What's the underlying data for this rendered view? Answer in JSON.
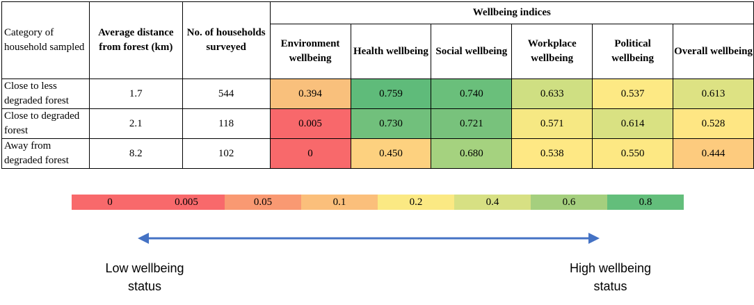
{
  "table": {
    "header": {
      "category": "Category of household sampled",
      "distance": "Average distance from forest (km)",
      "households": "No. of households surveyed",
      "indices_group": "Wellbeing indices",
      "indices": [
        "Environment wellbeing",
        "Health wellbeing",
        "Social wellbeing",
        "Workplace wellbeing",
        "Political wellbeing",
        "Overall wellbeing"
      ]
    },
    "rows": [
      {
        "category": "Close to less degraded forest",
        "distance": "1.7",
        "households": "544",
        "values": [
          "0.394",
          "0.759",
          "0.740",
          "0.633",
          "0.537",
          "0.613"
        ],
        "colors": [
          "#f9c07c",
          "#5fbb7a",
          "#6abf7b",
          "#cfdf82",
          "#fde984",
          "#dde283"
        ]
      },
      {
        "category": "Close to degraded forest",
        "distance": "2.1",
        "households": "118",
        "values": [
          "0.005",
          "0.730",
          "0.721",
          "0.571",
          "0.614",
          "0.528"
        ],
        "colors": [
          "#f8686b",
          "#71c07c",
          "#78c27c",
          "#f6e883",
          "#d9e182",
          "#fee683"
        ]
      },
      {
        "category": "Away from degraded forest",
        "distance": "8.2",
        "households": "102",
        "values": [
          "0",
          "0.450",
          "0.680",
          "0.538",
          "0.550",
          "0.444"
        ],
        "colors": [
          "#f8696b",
          "#fdd17f",
          "#a5d27f",
          "#fee884",
          "#fde883",
          "#fdcb7e"
        ]
      }
    ]
  },
  "legend": {
    "labels": [
      "0",
      "0.005",
      "0.05",
      "0.1",
      "0.2",
      "0.4",
      "0.6",
      "0.8"
    ],
    "colors": [
      "#f8696b",
      "#f8696b",
      "#f99972",
      "#fbbf7b",
      "#fbe983",
      "#d7e083",
      "#a5cf7e",
      "#63be7b"
    ]
  },
  "arrow_color": "#4472c4",
  "notes": {
    "low": "Low wellbeing status",
    "high": "High wellbeing status"
  }
}
